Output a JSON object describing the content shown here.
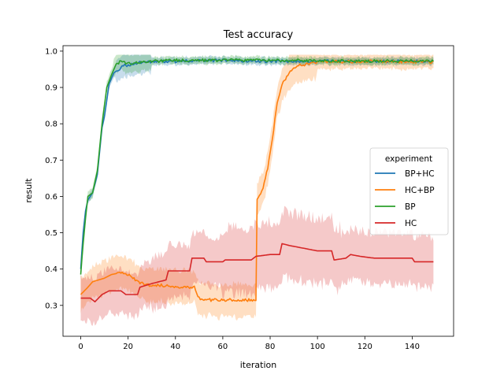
{
  "chart_data": {
    "type": "line",
    "title": "Test accuracy",
    "xlabel": "iteration",
    "ylabel": "result",
    "xlim": [
      -7.5,
      157.5
    ],
    "ylim": [
      0.215,
      1.015
    ],
    "xticks": [
      0,
      20,
      40,
      60,
      80,
      100,
      120,
      140
    ],
    "yticks": [
      0.3,
      0.4,
      0.5,
      0.6,
      0.7,
      0.8,
      0.9,
      1.0
    ],
    "grid": false,
    "legend": {
      "title": "experiment",
      "position": "center-right"
    },
    "series": [
      {
        "name": "BP+HC",
        "color": "#1f77b4",
        "keypoints": [
          [
            0,
            0.4
          ],
          [
            1,
            0.5
          ],
          [
            2,
            0.56
          ],
          [
            3,
            0.59
          ],
          [
            5,
            0.61
          ],
          [
            7,
            0.66
          ],
          [
            9,
            0.79
          ],
          [
            10,
            0.82
          ],
          [
            12,
            0.91
          ],
          [
            14,
            0.94
          ],
          [
            16,
            0.95
          ],
          [
            18,
            0.96
          ],
          [
            20,
            0.96
          ],
          [
            25,
            0.97
          ],
          [
            30,
            0.97
          ],
          [
            40,
            0.972
          ],
          [
            60,
            0.975
          ],
          [
            80,
            0.972
          ],
          [
            100,
            0.972
          ],
          [
            149,
            0.972
          ]
        ],
        "band": [
          0.012,
          0.03,
          0.01,
          0.008
        ],
        "bandBreaks": [
          15,
          30
        ]
      },
      {
        "name": "HC+BP",
        "color": "#ff7f0e",
        "keypoints": [
          [
            0,
            0.33
          ],
          [
            3,
            0.35
          ],
          [
            5,
            0.365
          ],
          [
            10,
            0.375
          ],
          [
            13,
            0.385
          ],
          [
            17,
            0.39
          ],
          [
            21,
            0.385
          ],
          [
            23,
            0.37
          ],
          [
            26,
            0.36
          ],
          [
            30,
            0.355
          ],
          [
            36,
            0.355
          ],
          [
            40,
            0.35
          ],
          [
            48,
            0.35
          ],
          [
            50,
            0.32
          ],
          [
            55,
            0.315
          ],
          [
            65,
            0.315
          ],
          [
            74,
            0.315
          ],
          [
            74.5,
            0.59
          ],
          [
            77,
            0.62
          ],
          [
            79,
            0.68
          ],
          [
            81,
            0.76
          ],
          [
            83,
            0.86
          ],
          [
            85,
            0.91
          ],
          [
            88,
            0.94
          ],
          [
            92,
            0.96
          ],
          [
            96,
            0.965
          ],
          [
            100,
            0.97
          ],
          [
            120,
            0.972
          ],
          [
            149,
            0.97
          ]
        ],
        "band": [
          0.045,
          0.045,
          0.045,
          0.02,
          0.01
        ],
        "bandBreaks": [
          74,
          84,
          100
        ]
      },
      {
        "name": "BP",
        "color": "#2ca02c",
        "keypoints": [
          [
            0,
            0.385
          ],
          [
            1,
            0.47
          ],
          [
            2,
            0.54
          ],
          [
            3,
            0.6
          ],
          [
            5,
            0.61
          ],
          [
            7,
            0.67
          ],
          [
            9,
            0.8
          ],
          [
            11,
            0.9
          ],
          [
            13,
            0.935
          ],
          [
            15,
            0.965
          ],
          [
            17,
            0.972
          ],
          [
            20,
            0.965
          ],
          [
            25,
            0.97
          ],
          [
            40,
            0.975
          ],
          [
            60,
            0.975
          ],
          [
            80,
            0.975
          ],
          [
            100,
            0.973
          ],
          [
            149,
            0.973
          ]
        ],
        "band": [
          0.015,
          0.025,
          0.01,
          0.008
        ],
        "bandBreaks": [
          14,
          30
        ]
      },
      {
        "name": "HC",
        "color": "#d62728",
        "keypoints": [
          [
            0,
            0.32
          ],
          [
            4,
            0.32
          ],
          [
            6,
            0.31
          ],
          [
            9,
            0.33
          ],
          [
            12,
            0.34
          ],
          [
            17,
            0.34
          ],
          [
            19,
            0.33
          ],
          [
            24,
            0.33
          ],
          [
            25,
            0.35
          ],
          [
            30,
            0.36
          ],
          [
            36,
            0.37
          ],
          [
            37,
            0.395
          ],
          [
            46,
            0.395
          ],
          [
            47,
            0.43
          ],
          [
            52,
            0.43
          ],
          [
            53,
            0.42
          ],
          [
            60,
            0.42
          ],
          [
            61,
            0.425
          ],
          [
            72,
            0.425
          ],
          [
            74,
            0.435
          ],
          [
            80,
            0.44
          ],
          [
            84,
            0.44
          ],
          [
            85,
            0.47
          ],
          [
            88,
            0.465
          ],
          [
            92,
            0.46
          ],
          [
            96,
            0.455
          ],
          [
            100,
            0.45
          ],
          [
            106,
            0.45
          ],
          [
            107,
            0.425
          ],
          [
            112,
            0.43
          ],
          [
            114,
            0.44
          ],
          [
            118,
            0.435
          ],
          [
            124,
            0.43
          ],
          [
            140,
            0.43
          ],
          [
            141,
            0.42
          ],
          [
            149,
            0.42
          ]
        ],
        "band": [
          0.06,
          0.07,
          0.09,
          0.07
        ],
        "bandBreaks": [
          30,
          60,
          110
        ]
      }
    ]
  }
}
